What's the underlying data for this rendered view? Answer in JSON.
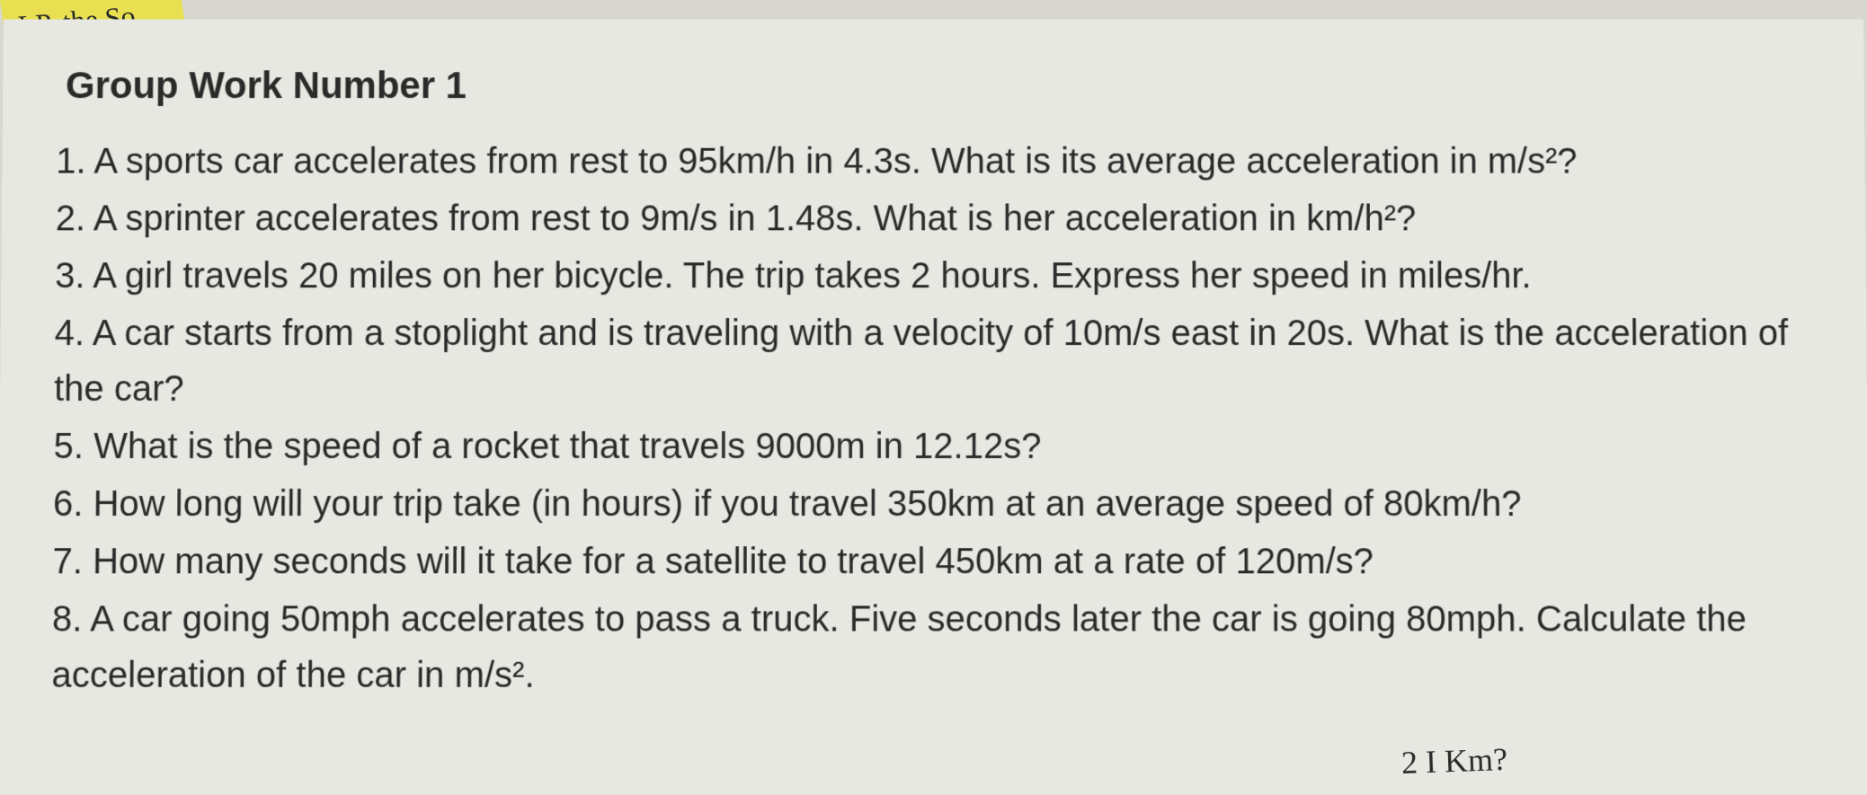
{
  "page": {
    "background_color": "#d8d8d0",
    "paper_color": "#e8e8e2",
    "text_color": "#2a2a2a",
    "yellow_accent": "#e8e050"
  },
  "handwriting": {
    "top_left": "LP,  the   So",
    "bottom_right": "2 I  Km?"
  },
  "document": {
    "title": "Group Work Number 1",
    "title_fontsize": 42,
    "body_fontsize": 40,
    "questions": {
      "q1": "1. A sports car accelerates from rest to 95km/h in 4.3s. What is its average acceleration in m/s²?",
      "q2": "2. A sprinter accelerates from rest to 9m/s in 1.48s. What is her acceleration in km/h²?",
      "q3": "3. A girl travels 20 miles on her bicycle. The trip takes 2 hours. Express her speed in miles/hr.",
      "q4": "4. A car starts from a stoplight and is traveling with a velocity of 10m/s east in 20s. What is the acceleration of the car?",
      "q5": "5. What is the speed of a rocket that travels 9000m in 12.12s?",
      "q6": "6. How long will your trip take (in hours) if you travel 350km at an average speed of 80km/h?",
      "q7": "7. How many seconds will it take for a satellite to travel 450km at a rate of 120m/s?",
      "q8": "8. A car going 50mph accelerates to pass a truck. Five seconds later the car is going 80mph. Calculate the acceleration of the car in m/s²."
    }
  }
}
